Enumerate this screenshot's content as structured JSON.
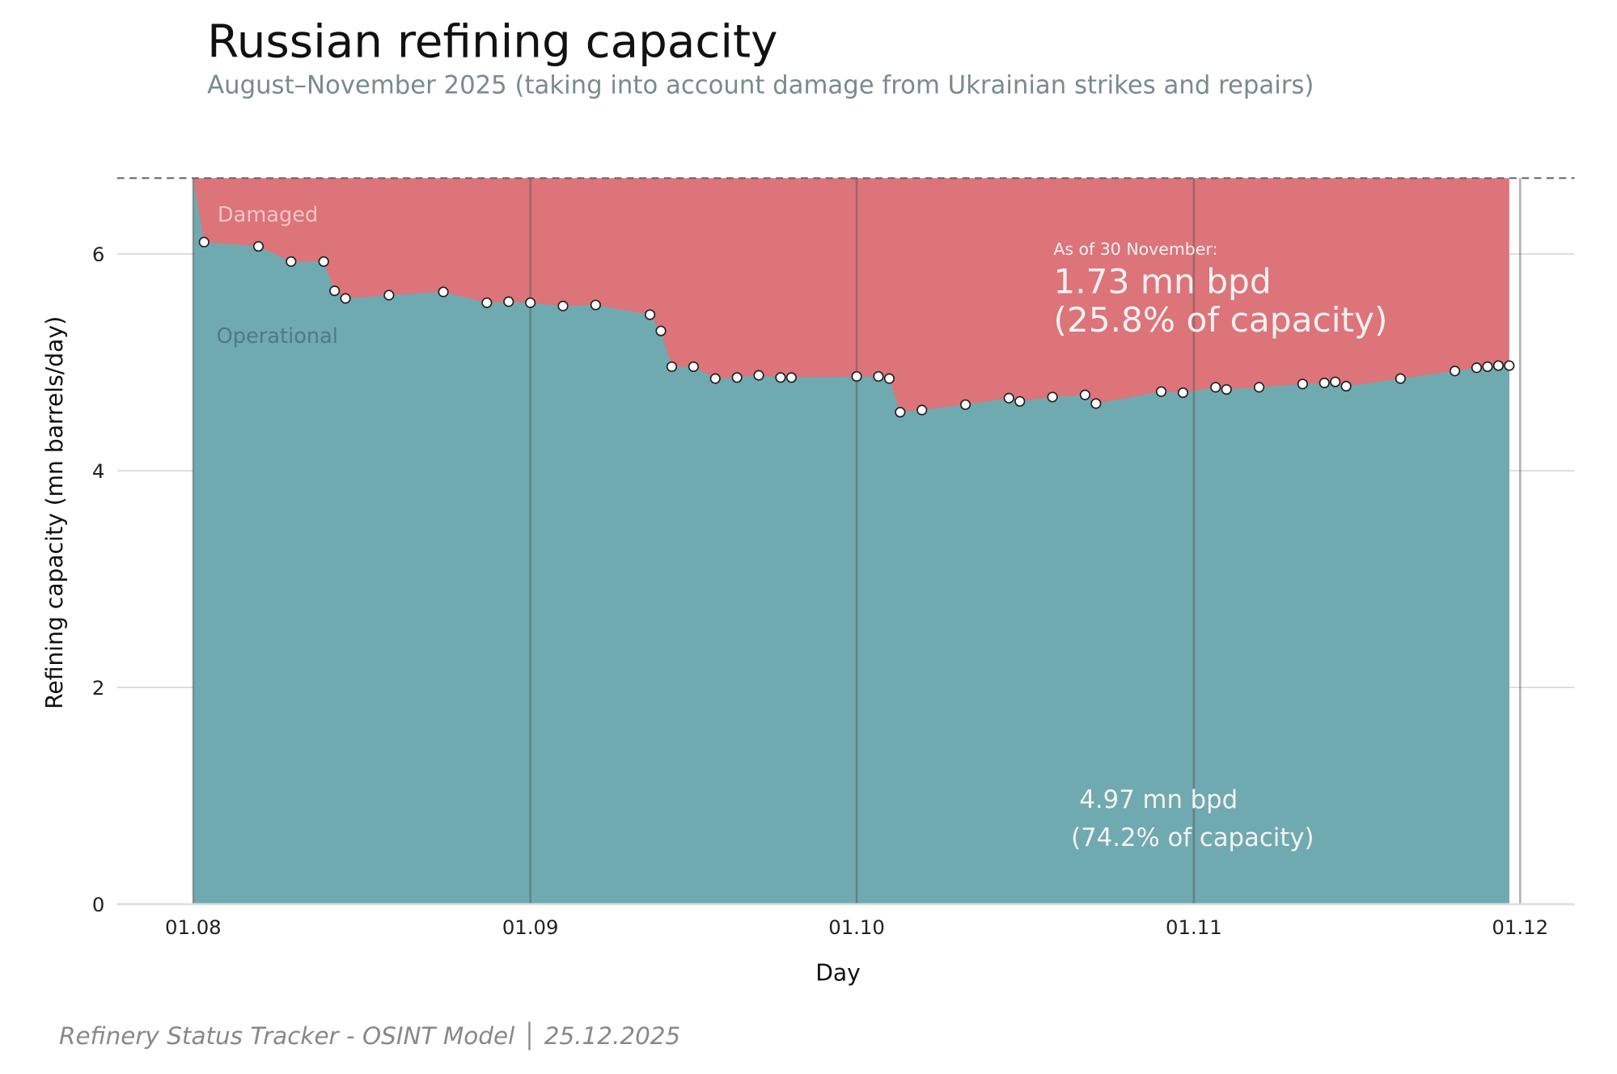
{
  "chart_data": {
    "type": "area",
    "title": "Russian refining capacity",
    "subtitle": "August–November 2025 (taking into account damage from Ukrainian strikes and repairs)",
    "x_label": "Day",
    "y_label": "Refining capacity (mn barrels/day)",
    "footer": "Refinery Status Tracker - OSINT Model │ 25.12.2025",
    "capacity": 6.7,
    "xlim": [
      "25.07",
      "06.12"
    ],
    "xticks": [
      "01.08",
      "01.09",
      "01.10",
      "01.11",
      "01.12"
    ],
    "ylim": [
      0,
      6.7
    ],
    "yticks": [
      0,
      2,
      4,
      6
    ],
    "grid": true,
    "series": [
      {
        "name": "Operational",
        "color": "#6faab0",
        "x": [
          "01.08",
          "02.08",
          "07.08",
          "10.08",
          "13.08",
          "14.08",
          "15.08",
          "19.08",
          "24.08",
          "28.08",
          "30.08",
          "01.09",
          "04.09",
          "07.09",
          "12.09",
          "13.09",
          "14.09",
          "16.09",
          "18.09",
          "20.09",
          "22.09",
          "24.09",
          "25.09",
          "01.10",
          "03.10",
          "04.10",
          "05.10",
          "07.10",
          "11.10",
          "15.10",
          "16.10",
          "19.10",
          "22.10",
          "23.10",
          "29.10",
          "31.10",
          "03.11",
          "04.11",
          "07.11",
          "11.11",
          "13.11",
          "14.11",
          "15.11",
          "20.11",
          "25.11",
          "27.11",
          "28.11",
          "29.11",
          "30.11"
        ],
        "values": [
          6.7,
          6.11,
          6.07,
          5.93,
          5.93,
          5.66,
          5.59,
          5.62,
          5.65,
          5.55,
          5.56,
          5.55,
          5.52,
          5.53,
          5.44,
          5.29,
          4.96,
          4.96,
          4.85,
          4.86,
          4.88,
          4.86,
          4.86,
          4.87,
          4.87,
          4.85,
          4.54,
          4.56,
          4.61,
          4.67,
          4.64,
          4.68,
          4.7,
          4.62,
          4.73,
          4.72,
          4.77,
          4.75,
          4.77,
          4.8,
          4.81,
          4.82,
          4.78,
          4.85,
          4.92,
          4.95,
          4.96,
          4.97,
          4.97
        ]
      },
      {
        "name": "Damaged",
        "color": "#dc747a"
      }
    ],
    "annotations": [
      "As of 30 November:",
      "1.73 mn bpd",
      "(25.8% of capacity)",
      "4.97 mn bpd",
      "(74.2% of capacity)"
    ]
  }
}
